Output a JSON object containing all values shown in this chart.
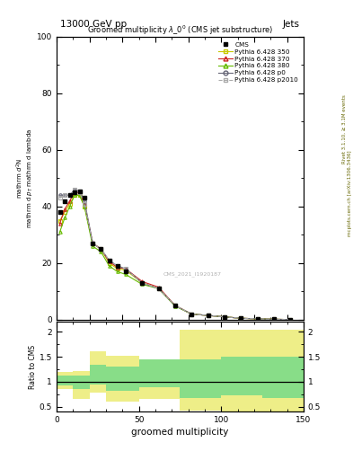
{
  "title": "13000 GeV pp",
  "title_right": "Jets",
  "plot_title": "Groomed multiplicity $\\lambda\\_0^0$ (CMS jet substructure)",
  "xlabel": "groomed multiplicity",
  "ylabel_line1": "mathrm d",
  "ylabel_ratio": "Ratio to CMS",
  "right_label": "Rivet 3.1.10, ≥ 3.1M events",
  "right_label2": "mcplots.cern.ch [arXiv:1306.3436]",
  "watermark": "CMS_2021_I1920187",
  "xlim": [
    0,
    150
  ],
  "ylim_main": [
    0,
    100
  ],
  "ylim_ratio": [
    0.4,
    2.2
  ],
  "cms_x": [
    2,
    5,
    8,
    11,
    14,
    17,
    22,
    27,
    32,
    37,
    42,
    52,
    62,
    72,
    82,
    92,
    102,
    112,
    122,
    132,
    142
  ],
  "cms_y": [
    38,
    42,
    44,
    45,
    45.5,
    43,
    27,
    25,
    21,
    19,
    17,
    13,
    11,
    5,
    2,
    1.5,
    1.0,
    0.5,
    0.3,
    0.15,
    0.05
  ],
  "py350_x": [
    2,
    5,
    8,
    11,
    14,
    17,
    22,
    27,
    32,
    37,
    42,
    52,
    62,
    72,
    82,
    92,
    102,
    112,
    122,
    132,
    142
  ],
  "py350_y": [
    35,
    38,
    41,
    44,
    44,
    40,
    27,
    25,
    20,
    18,
    17.5,
    13,
    11,
    5,
    2,
    1.5,
    1.0,
    0.5,
    0.3,
    0.15,
    0.05
  ],
  "py370_x": [
    2,
    5,
    8,
    11,
    14,
    17,
    22,
    27,
    32,
    37,
    42,
    52,
    62,
    72,
    82,
    92,
    102,
    112,
    122,
    132,
    142
  ],
  "py370_y": [
    34,
    39,
    42,
    45,
    45,
    41,
    27,
    25,
    20.5,
    18.5,
    18,
    13.5,
    11.5,
    5,
    2,
    1.5,
    1.0,
    0.5,
    0.3,
    0.15,
    0.05
  ],
  "py380_x": [
    2,
    5,
    8,
    11,
    14,
    17,
    22,
    27,
    32,
    37,
    42,
    52,
    62,
    72,
    82,
    92,
    102,
    112,
    122,
    132,
    142
  ],
  "py380_y": [
    31,
    36,
    40,
    44,
    44,
    40,
    26,
    24,
    19,
    17,
    16,
    12.5,
    11,
    4.8,
    2,
    1.5,
    1.0,
    0.5,
    0.3,
    0.15,
    0.05
  ],
  "pyp0_x": [
    2,
    5,
    8,
    11,
    14,
    17,
    22,
    27,
    32,
    37,
    42,
    52,
    62,
    72,
    82,
    92,
    102,
    112,
    122,
    132,
    142
  ],
  "pyp0_y": [
    44,
    44,
    44,
    46,
    45.5,
    42,
    27,
    25,
    21,
    19,
    18,
    13,
    11,
    5,
    2,
    1.5,
    1.0,
    0.5,
    0.3,
    0.15,
    0.05
  ],
  "pyp2010_x": [
    2,
    5,
    8,
    11,
    14,
    17,
    22,
    27,
    32,
    37,
    42,
    52,
    62,
    72,
    82,
    92,
    102,
    112,
    122,
    132,
    142
  ],
  "pyp2010_y": [
    43,
    44,
    44,
    46,
    45,
    41,
    27,
    25,
    21,
    19,
    18,
    13,
    11,
    5,
    2,
    1.5,
    1.0,
    0.5,
    0.3,
    0.15,
    0.05
  ],
  "ratio_bins": [
    0,
    10,
    20,
    30,
    50,
    75,
    100,
    125,
    150
  ],
  "ratio_yellow_lo": [
    0.85,
    0.65,
    0.78,
    0.6,
    0.65,
    0.42,
    0.38,
    0.28
  ],
  "ratio_yellow_hi": [
    1.2,
    1.22,
    1.62,
    1.52,
    1.42,
    2.05,
    2.05,
    2.05
  ],
  "ratio_green_lo": [
    0.92,
    0.85,
    0.95,
    0.82,
    0.9,
    0.68,
    0.72,
    0.68
  ],
  "ratio_green_hi": [
    1.12,
    1.12,
    1.35,
    1.3,
    1.45,
    1.45,
    1.5,
    1.5
  ],
  "color_350": "#c8c800",
  "color_370": "#cc2222",
  "color_380": "#66bb00",
  "color_p0": "#666677",
  "color_p2010": "#aaaaaa",
  "color_yellow": "#eeee88",
  "color_green": "#88dd88",
  "bg_color": "#ffffff"
}
